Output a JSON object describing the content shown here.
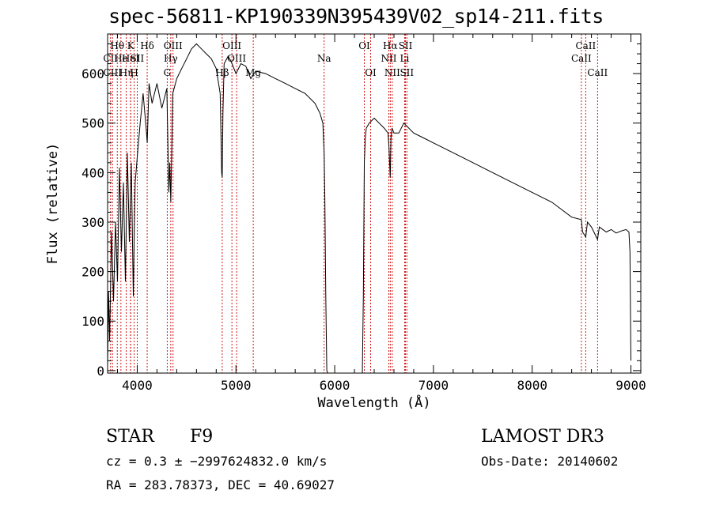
{
  "title": "spec-56811-KP190339N395439V02_sp14-211.fits",
  "info": {
    "class": "STAR",
    "subclass": "F9",
    "survey": "LAMOST DR3",
    "cz": "cz = 0.3 ± −2997624832.0 km/s",
    "obs_date": "Obs-Date: 20140602",
    "radec": "RA = 283.78373, DEC =  40.69027"
  },
  "chart_data": {
    "type": "line",
    "title": "spec-56811-KP190339N395439V02_sp14-211.fits",
    "xlabel": "Wavelength (Å)",
    "ylabel": "Flux (relative)",
    "xlim": [
      3700,
      9100
    ],
    "ylim": [
      -5,
      680
    ],
    "xticks": [
      4000,
      5000,
      6000,
      7000,
      8000,
      9000
    ],
    "yticks": [
      0,
      100,
      200,
      300,
      400,
      500,
      600
    ],
    "series": [
      {
        "name": "flux",
        "x": [
          3700,
          3710,
          3720,
          3740,
          3760,
          3780,
          3800,
          3820,
          3840,
          3860,
          3880,
          3900,
          3920,
          3940,
          3960,
          3970,
          3980,
          4000,
          4030,
          4060,
          4090,
          4101,
          4120,
          4150,
          4200,
          4250,
          4300,
          4320,
          4330,
          4340,
          4360,
          4400,
          4450,
          4500,
          4550,
          4600,
          4650,
          4700,
          4750,
          4800,
          4840,
          4855,
          4861,
          4868,
          4880,
          4920,
          4950,
          5000,
          5050,
          5100,
          5150,
          5200,
          5300,
          5400,
          5500,
          5600,
          5700,
          5800,
          5850,
          5880,
          5893,
          5900,
          5910,
          5920,
          5930,
          6280,
          6290,
          6300,
          6310,
          6320,
          6350,
          6400,
          6450,
          6500,
          6540,
          6550,
          6563,
          6570,
          6580,
          6600,
          6650,
          6700,
          6800,
          6900,
          7000,
          7200,
          7400,
          7600,
          7800,
          8000,
          8200,
          8400,
          8498,
          8510,
          8542,
          8560,
          8600,
          8662,
          8680,
          8750,
          8800,
          8850,
          8900,
          8950,
          8980,
          8990,
          9000
        ],
        "y": [
          10,
          160,
          60,
          280,
          140,
          300,
          180,
          410,
          240,
          380,
          180,
          440,
          260,
          420,
          150,
          280,
          380,
          430,
          500,
          560,
          490,
          460,
          580,
          540,
          580,
          530,
          570,
          360,
          420,
          340,
          560,
          590,
          610,
          630,
          650,
          660,
          650,
          640,
          630,
          610,
          560,
          400,
          390,
          520,
          620,
          635,
          625,
          600,
          620,
          615,
          590,
          605,
          600,
          590,
          580,
          570,
          560,
          540,
          520,
          500,
          440,
          350,
          150,
          0,
          -5,
          -5,
          150,
          420,
          470,
          490,
          500,
          510,
          500,
          490,
          480,
          450,
          390,
          470,
          490,
          480,
          480,
          500,
          480,
          470,
          460,
          440,
          420,
          400,
          380,
          360,
          340,
          310,
          305,
          280,
          270,
          300,
          290,
          265,
          290,
          280,
          285,
          278,
          282,
          285,
          280,
          240,
          20
        ]
      }
    ],
    "lines": [
      {
        "label": "Hθ",
        "wave": 3798,
        "row": 1
      },
      {
        "label": "CII",
        "wave": 3730,
        "row": 2
      },
      {
        "label": "CIII",
        "wave": 3750,
        "row": 3
      },
      {
        "label": "He",
        "wave": 3835,
        "row": 2
      },
      {
        "label": "Hη",
        "wave": 3889,
        "row": 3
      },
      {
        "label": "K",
        "wave": 3934,
        "row": 1
      },
      {
        "label": "HeI",
        "wave": 3933,
        "row": 2
      },
      {
        "label": "H",
        "wave": 3969,
        "row": 3
      },
      {
        "label": "SII",
        "wave": 4000,
        "row": 2
      },
      {
        "label": "Hδ",
        "wave": 4101,
        "row": 1
      },
      {
        "label": "OIII",
        "wave": 4363,
        "row": 1
      },
      {
        "label": "Hγ",
        "wave": 4340,
        "row": 2
      },
      {
        "label": "G",
        "wave": 4304,
        "row": 3
      },
      {
        "label": "Hβ",
        "wave": 4861,
        "row": 3
      },
      {
        "label": "OIII",
        "wave": 4959,
        "row": 1
      },
      {
        "label": "OIII",
        "wave": 5007,
        "row": 2
      },
      {
        "label": "Mg",
        "wave": 5175,
        "row": 3
      },
      {
        "label": "Na",
        "wave": 5893,
        "row": 2
      },
      {
        "label": "OI",
        "wave": 6300,
        "row": 1
      },
      {
        "label": "OI",
        "wave": 6364,
        "row": 3
      },
      {
        "label": "Hα",
        "wave": 6563,
        "row": 1
      },
      {
        "label": "NII",
        "wave": 6548,
        "row": 2
      },
      {
        "label": "NII",
        "wave": 6583,
        "row": 3
      },
      {
        "label": "SII",
        "wave": 6717,
        "row": 1
      },
      {
        "label": "Li",
        "wave": 6708,
        "row": 2
      },
      {
        "label": "SII",
        "wave": 6731,
        "row": 3
      },
      {
        "label": "CaII",
        "wave": 8498,
        "row": 2
      },
      {
        "label": "CaII",
        "wave": 8542,
        "row": 1
      },
      {
        "label": "CaII",
        "wave": 8662,
        "row": 3
      }
    ]
  }
}
